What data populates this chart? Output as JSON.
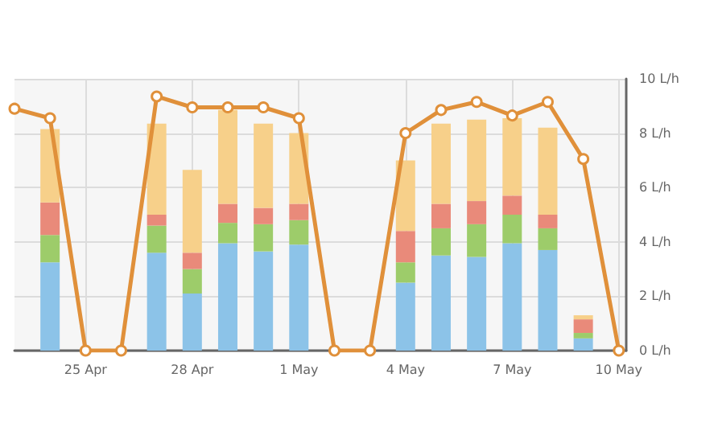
{
  "chart_data": {
    "type": "bar",
    "stacked": true,
    "x": [
      "--04-23",
      "--04-24",
      "--04-25",
      "--04-26",
      "--04-27",
      "--04-28",
      "--04-29",
      "--04-30",
      "--05-01",
      "--05-02",
      "--05-03",
      "--05-04",
      "--05-05",
      "--05-06",
      "--05-07",
      "--05-08",
      "--05-09",
      "--05-10"
    ],
    "series": [
      {
        "color": "#8cc3e8",
        "values": [
          null,
          3.25,
          null,
          null,
          3.6,
          2.1,
          3.95,
          3.65,
          3.9,
          null,
          null,
          2.5,
          3.5,
          3.45,
          3.95,
          3.7,
          0.45,
          null
        ]
      },
      {
        "color": "#9dcc6a",
        "values": [
          null,
          1.0,
          null,
          null,
          1.0,
          0.9,
          0.75,
          1.0,
          0.9,
          null,
          null,
          0.75,
          1.0,
          1.2,
          1.05,
          0.8,
          0.2,
          null
        ]
      },
      {
        "color": "#e98a7a",
        "values": [
          null,
          1.2,
          null,
          null,
          0.4,
          0.6,
          0.7,
          0.6,
          0.6,
          null,
          null,
          1.15,
          0.9,
          0.85,
          0.7,
          0.5,
          0.5,
          null
        ]
      },
      {
        "color": "#f7d08a",
        "values": [
          null,
          2.7,
          null,
          null,
          3.35,
          3.05,
          3.45,
          3.1,
          2.6,
          null,
          null,
          2.6,
          2.95,
          3.0,
          2.85,
          3.2,
          0.15,
          null
        ]
      },
      {
        "type": "line",
        "color": "#e0903a",
        "marker": "circle",
        "values": [
          8.9,
          8.55,
          0,
          0,
          9.35,
          8.95,
          8.95,
          8.95,
          8.55,
          0,
          0,
          8.0,
          8.85,
          9.15,
          8.65,
          9.15,
          7.05,
          0
        ]
      }
    ],
    "xlim": [
      "--04-23",
      "--05-10T05:00"
    ],
    "xticks": [
      {
        "value": "--04-25",
        "label": "25 Apr"
      },
      {
        "value": "--04-28",
        "label": "28 Apr"
      },
      {
        "value": "--05-01",
        "label": "1 May"
      },
      {
        "value": "--05-04",
        "label": "4 May"
      },
      {
        "value": "--05-07",
        "label": "7 May"
      },
      {
        "value": "--05-10",
        "label": "10 May"
      }
    ],
    "ylim": [
      0,
      10
    ],
    "yticks": [
      {
        "value": 0,
        "label": "0 L/h"
      },
      {
        "value": 2,
        "label": "2 L/h"
      },
      {
        "value": 4,
        "label": "4 L/h"
      },
      {
        "value": 6,
        "label": "6 L/h"
      },
      {
        "value": 8,
        "label": "8 L/h"
      },
      {
        "value": 10,
        "label": "10 L/h"
      }
    ],
    "grid": true
  }
}
